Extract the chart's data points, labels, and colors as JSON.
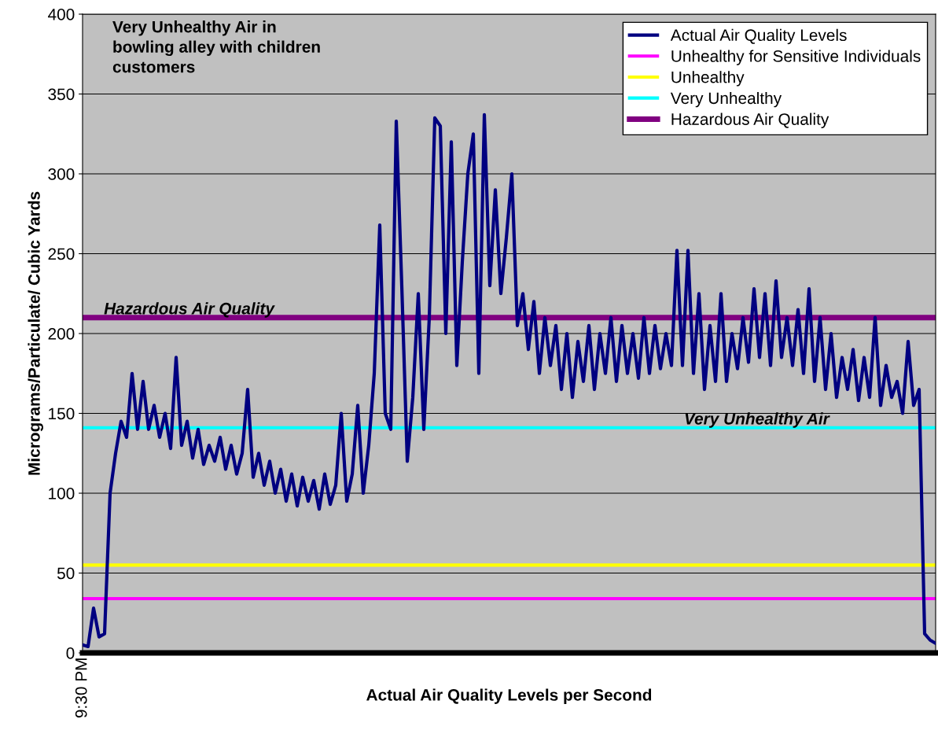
{
  "chart_data": {
    "type": "line",
    "title": "Very Unhealthy Air in\nbowling alley with children\ncustomers",
    "xlabel": "Actual Air Quality Levels per Second",
    "ylabel": "Micrograms/Particulate/ Cubic Yards",
    "categories": [
      "9:30 PM",
      null,
      null,
      null,
      null,
      null,
      null,
      null,
      null,
      null,
      null,
      null,
      null,
      null,
      null,
      null,
      null,
      null,
      null,
      null,
      null,
      null,
      null,
      null,
      null,
      null,
      null,
      null,
      null,
      null,
      null,
      null,
      null,
      null,
      null,
      null,
      null,
      null,
      null,
      null,
      null,
      null,
      null,
      null,
      null,
      null,
      null,
      null,
      null,
      null,
      null,
      null,
      null,
      null,
      null,
      null,
      null,
      null,
      null,
      null,
      null,
      null,
      null,
      null,
      null,
      null,
      null,
      null,
      null,
      null,
      null,
      null,
      null,
      null,
      null,
      null,
      null,
      null,
      null,
      null,
      null,
      null,
      null,
      null,
      null,
      null,
      null,
      null,
      null,
      null,
      null,
      null,
      null,
      null,
      null,
      null,
      null,
      null,
      null,
      null,
      null,
      null,
      null,
      null,
      null,
      null,
      null,
      null,
      null,
      null,
      null,
      null,
      null,
      null,
      null,
      null,
      null,
      null,
      null,
      null,
      null,
      null,
      null,
      null,
      null,
      null,
      null,
      null,
      null,
      null,
      null,
      null,
      null,
      null,
      null,
      null,
      null,
      null,
      null,
      null,
      null,
      null,
      null,
      null,
      null,
      null,
      null,
      null,
      null,
      null,
      null,
      null,
      null,
      null,
      null,
      null
    ],
    "series": [
      {
        "name": "Actual Air Quality Levels",
        "color": "#000080",
        "values": [
          5,
          4,
          28,
          10,
          12,
          100,
          125,
          145,
          135,
          175,
          140,
          170,
          140,
          155,
          135,
          150,
          128,
          185,
          130,
          145,
          122,
          140,
          118,
          130,
          120,
          135,
          115,
          130,
          112,
          125,
          165,
          110,
          125,
          105,
          120,
          100,
          115,
          95,
          112,
          92,
          110,
          95,
          108,
          90,
          112,
          93,
          105,
          150,
          95,
          112,
          155,
          100,
          130,
          175,
          268,
          150,
          140,
          333,
          230,
          120,
          160,
          225,
          140,
          210,
          335,
          330,
          200,
          320,
          180,
          245,
          300,
          325,
          175,
          337,
          230,
          290,
          225,
          260,
          300,
          205,
          225,
          190,
          220,
          175,
          210,
          180,
          205,
          165,
          200,
          160,
          195,
          170,
          205,
          165,
          200,
          175,
          210,
          170,
          205,
          175,
          200,
          172,
          210,
          175,
          205,
          178,
          200,
          180,
          252,
          180,
          252,
          175,
          225,
          165,
          205,
          170,
          225,
          170,
          200,
          178,
          210,
          182,
          228,
          185,
          225,
          180,
          233,
          185,
          210,
          180,
          215,
          175,
          228,
          170,
          210,
          165,
          200,
          160,
          185,
          165,
          190,
          158,
          185,
          160,
          210,
          155,
          180,
          160,
          170,
          150,
          195,
          155,
          165,
          12,
          8,
          6
        ]
      }
    ],
    "ref_lines": [
      {
        "axis": "y",
        "value": 34,
        "label": "Unhealthy for Sensitive Individuals",
        "color": "#ff00ff"
      },
      {
        "axis": "y",
        "value": 55,
        "label": "Unhealthy",
        "color": "#ffff00"
      },
      {
        "axis": "y",
        "value": 141,
        "label": "Very Unhealthy",
        "color": "#00ffff"
      },
      {
        "axis": "y",
        "value": 210,
        "label": "Hazardous Air Quality",
        "color": "#800080"
      }
    ],
    "annotations": [
      {
        "text": "Hazardous Air Quality",
        "y": 210
      },
      {
        "text": "Very Unhealthy Air",
        "y": 141
      }
    ],
    "ylim": [
      0,
      400
    ],
    "yticks": [
      0,
      50,
      100,
      150,
      200,
      250,
      300,
      350,
      400
    ],
    "grid": "y",
    "legend": "top right"
  }
}
